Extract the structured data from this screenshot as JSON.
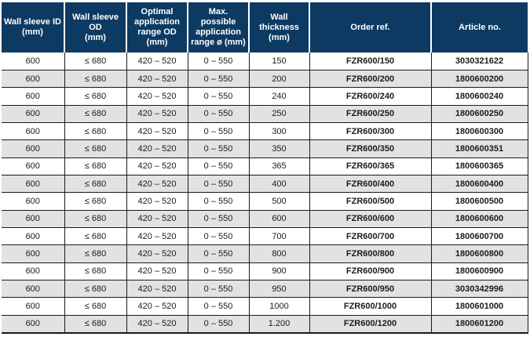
{
  "table": {
    "columns": [
      "Wall sleeve ID\n(mm)",
      "Wall sleeve OD\n(mm)",
      "Optimal\napplication\nrange OD\n(mm)",
      "Max. possible\napplication\nrange ø (mm)",
      "Wall thickness\n(mm)",
      "Order ref.",
      "Article no."
    ],
    "rows": [
      [
        "600",
        "≤ 680",
        "420 – 520",
        "0 – 550",
        "150",
        "FZR600/150",
        "3030321622"
      ],
      [
        "600",
        "≤ 680",
        "420 – 520",
        "0 – 550",
        "200",
        "FZR600/200",
        "1800600200"
      ],
      [
        "600",
        "≤ 680",
        "420 – 520",
        "0 – 550",
        "240",
        "FZR600/240",
        "1800600240"
      ],
      [
        "600",
        "≤ 680",
        "420 – 520",
        "0 – 550",
        "250",
        "FZR600/250",
        "1800600250"
      ],
      [
        "600",
        "≤ 680",
        "420 – 520",
        "0 – 550",
        "300",
        "FZR600/300",
        "1800600300"
      ],
      [
        "600",
        "≤ 680",
        "420 – 520",
        "0 – 550",
        "350",
        "FZR600/350",
        "1800600351"
      ],
      [
        "600",
        "≤ 680",
        "420 – 520",
        "0 – 550",
        "365",
        "FZR600/365",
        "1800600365"
      ],
      [
        "600",
        "≤ 680",
        "420 – 520",
        "0 – 550",
        "400",
        "FZR600/400",
        "1800600400"
      ],
      [
        "600",
        "≤ 680",
        "420 – 520",
        "0 – 550",
        "500",
        "FZR600/500",
        "1800600500"
      ],
      [
        "600",
        "≤ 680",
        "420 – 520",
        "0 – 550",
        "600",
        "FZR600/600",
        "1800600600"
      ],
      [
        "600",
        "≤ 680",
        "420 – 520",
        "0 – 550",
        "700",
        "FZR600/700",
        "1800600700"
      ],
      [
        "600",
        "≤ 680",
        "420 – 520",
        "0 – 550",
        "800",
        "FZR600/800",
        "1800600800"
      ],
      [
        "600",
        "≤ 680",
        "420 – 520",
        "0 – 550",
        "900",
        "FZR600/900",
        "1800600900"
      ],
      [
        "600",
        "≤ 680",
        "420 – 520",
        "0 – 550",
        "950",
        "FZR600/950",
        "3030342996"
      ],
      [
        "600",
        "≤ 680",
        "420 – 520",
        "0 – 550",
        "1000",
        "FZR600/1000",
        "1800601000"
      ],
      [
        "600",
        "≤ 680",
        "420 – 520",
        "0 – 550",
        "1.200",
        "FZR600/1200",
        "1800601200"
      ]
    ]
  },
  "colors": {
    "header_bg": "#0d3a62",
    "header_text": "#ffffff",
    "row_alt_bg": "#e2e2e2",
    "border": "#1a1a1a"
  }
}
